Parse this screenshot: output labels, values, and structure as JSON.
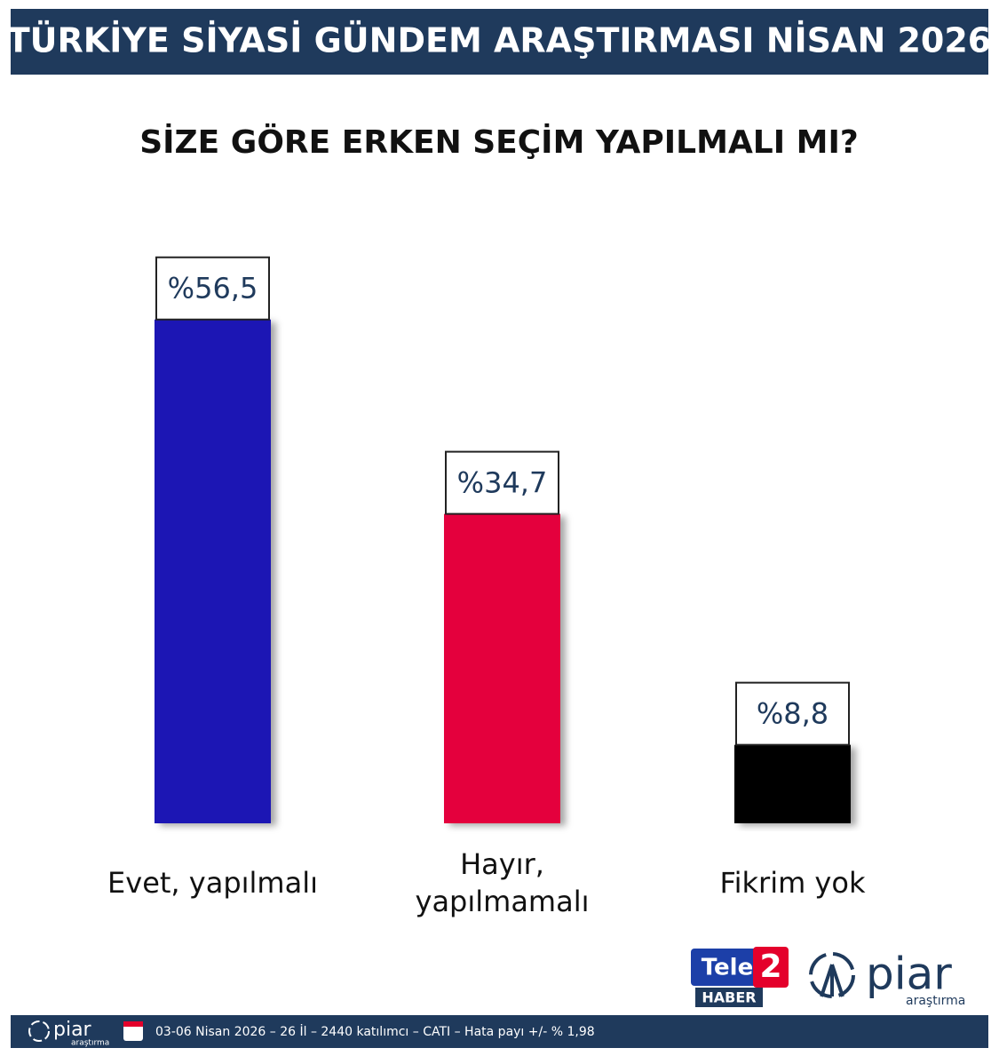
{
  "chart_data": {
    "type": "bar",
    "title": "TÜRKİYE SİYASİ GÜNDEM ARAŞTIRMASI NİSAN 2026",
    "subtitle": "SİZE GÖRE ERKEN SEÇİM YAPILMALI MI?",
    "categories": [
      "Evet, yapılmalı",
      "Hayır, yapılmamalı",
      "Fikrim yok"
    ],
    "values": [
      56.5,
      34.7,
      8.8
    ],
    "value_labels": [
      "%56,5",
      "%34,7",
      "%8,8"
    ],
    "colors": [
      "#1e12b4",
      "#e4003e",
      "#000000"
    ]
  },
  "logos": {
    "tele": "Tele",
    "two": "2",
    "haber": "HABER",
    "piar": "piar",
    "piar_sub": "araştırma"
  },
  "footer": {
    "brand": "piar",
    "brand_sub": "araştırma",
    "text": "03-06 Nisan 2026 – 26 İl – 2440 katılımcı – CATI – Hata payı +/- % 1,98"
  }
}
